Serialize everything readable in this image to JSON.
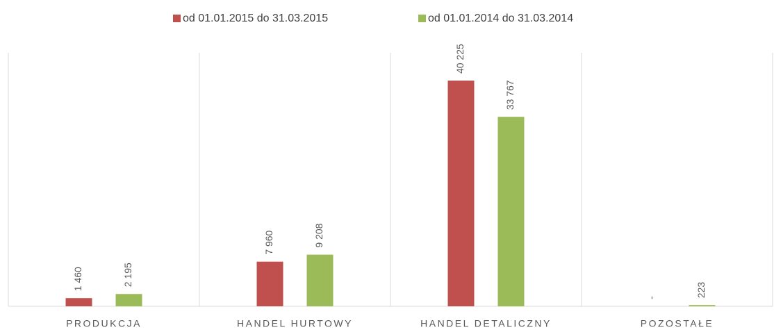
{
  "chart_data": {
    "type": "bar",
    "categories": [
      "PRODUKCJA",
      "HANDEL HURTOWY",
      "HANDEL DETALICZNY",
      "POZOSTAŁE"
    ],
    "series": [
      {
        "name": "od 01.01.2015 do 31.03.2015",
        "color": "#c0504d",
        "values": [
          1460,
          7960,
          40225,
          0
        ],
        "value_labels": [
          "1 460",
          "7 960",
          "40 225",
          "-"
        ]
      },
      {
        "name": "od 01.01.2014 do 31.03.2014",
        "color": "#9bbb59",
        "values": [
          2195,
          9208,
          33767,
          223
        ],
        "value_labels": [
          "2 195",
          "9 208",
          "33 767",
          "223"
        ]
      }
    ],
    "legend": "top"
  }
}
